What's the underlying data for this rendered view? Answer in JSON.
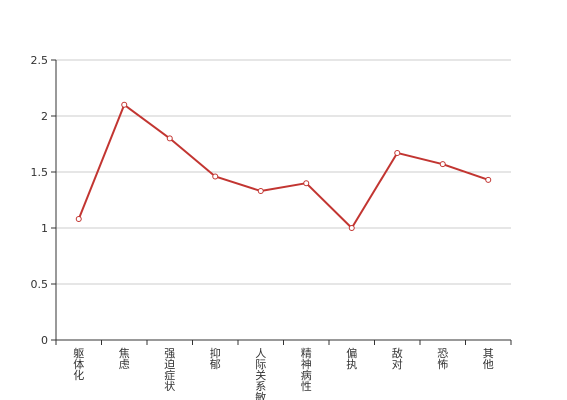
{
  "chart_data": {
    "type": "line",
    "title": "",
    "xlabel": "",
    "ylabel": "",
    "categories": [
      "躯体化",
      "焦虑",
      "强迫症状",
      "抑郁",
      "人际关系敏感",
      "精神病性",
      "偏执",
      "敌对",
      "恐怖",
      "其他"
    ],
    "series": [
      {
        "values": [
          1.08,
          2.1,
          1.8,
          1.46,
          1.33,
          1.4,
          1.0,
          1.67,
          1.57,
          1.43
        ]
      }
    ],
    "ylim": [
      0,
      2.5
    ],
    "yticks": [
      "0",
      "0.5",
      "1",
      "1.5",
      "2",
      "2.5"
    ],
    "ytick_values": [
      0,
      0.5,
      1,
      1.5,
      2,
      2.5
    ],
    "grid": true,
    "legend": "none",
    "colors": {
      "line": "#c23531",
      "grid": "#cccccc",
      "axis": "#333333",
      "point_fill": "#ffffff"
    }
  }
}
